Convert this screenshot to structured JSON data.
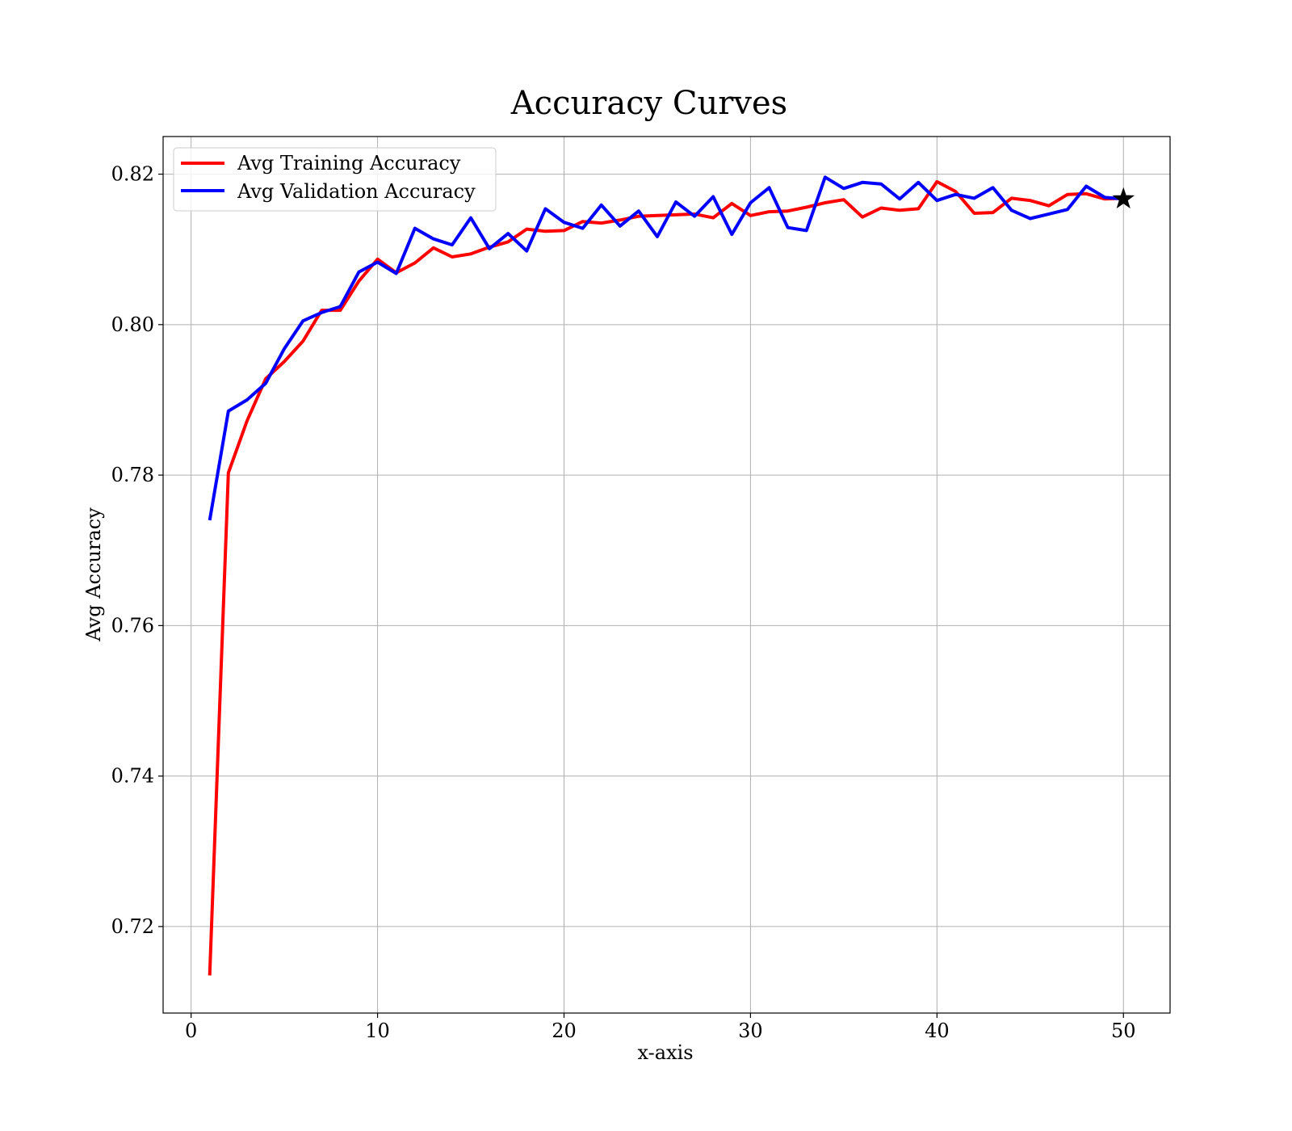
{
  "chart_data": {
    "type": "line",
    "title": "Accuracy Curves",
    "xlabel": "x-axis",
    "ylabel": "Avg Accuracy",
    "xlim": [
      -1.5,
      52.5
    ],
    "ylim": [
      0.7085,
      0.825
    ],
    "xticks": [
      0,
      10,
      20,
      30,
      40,
      50
    ],
    "xtick_labels": [
      "0",
      "10",
      "20",
      "30",
      "40",
      "50"
    ],
    "yticks": [
      0.72,
      0.74,
      0.76,
      0.78,
      0.8,
      0.82
    ],
    "ytick_labels": [
      "0.72",
      "0.74",
      "0.76",
      "0.78",
      "0.80",
      "0.82"
    ],
    "grid": true,
    "legend_position": "upper left",
    "x": [
      1,
      2,
      3,
      4,
      5,
      6,
      7,
      8,
      9,
      10,
      11,
      12,
      13,
      14,
      15,
      16,
      17,
      18,
      19,
      20,
      21,
      22,
      23,
      24,
      25,
      26,
      27,
      28,
      29,
      30,
      31,
      32,
      33,
      34,
      35,
      36,
      37,
      38,
      39,
      40,
      41,
      42,
      43,
      44,
      45,
      46,
      47,
      48,
      49,
      50
    ],
    "series": [
      {
        "name": "Avg Training Accuracy",
        "color": "#ff0000",
        "values": [
          0.7135,
          0.7803,
          0.7872,
          0.7928,
          0.7951,
          0.7978,
          0.8019,
          0.8019,
          0.8058,
          0.8087,
          0.8069,
          0.8082,
          0.8102,
          0.809,
          0.8094,
          0.8103,
          0.811,
          0.8127,
          0.8124,
          0.8125,
          0.8137,
          0.8135,
          0.8139,
          0.8144,
          0.8145,
          0.8146,
          0.8147,
          0.8142,
          0.8161,
          0.8145,
          0.815,
          0.8151,
          0.8156,
          0.8162,
          0.8166,
          0.8143,
          0.8155,
          0.8152,
          0.8154,
          0.819,
          0.8177,
          0.8148,
          0.8149,
          0.8168,
          0.8165,
          0.8158,
          0.8173,
          0.8174,
          0.8167,
          0.8168
        ]
      },
      {
        "name": "Avg Validation Accuracy",
        "color": "#0000ff",
        "values": [
          0.774,
          0.7885,
          0.79,
          0.7922,
          0.7968,
          0.8005,
          0.8016,
          0.8024,
          0.807,
          0.8083,
          0.8068,
          0.8128,
          0.8114,
          0.8106,
          0.8142,
          0.8101,
          0.8121,
          0.8098,
          0.8154,
          0.8136,
          0.8128,
          0.8159,
          0.8131,
          0.8151,
          0.8117,
          0.8163,
          0.8144,
          0.817,
          0.812,
          0.8162,
          0.8182,
          0.8129,
          0.8125,
          0.8196,
          0.8181,
          0.8189,
          0.8187,
          0.8167,
          0.8189,
          0.8165,
          0.8173,
          0.8168,
          0.8182,
          0.8152,
          0.8141,
          0.8147,
          0.8153,
          0.8184,
          0.8169,
          0.8167
        ]
      }
    ],
    "marker": {
      "symbol": "star",
      "x": 50,
      "y": 0.8167,
      "color": "#000000"
    }
  }
}
